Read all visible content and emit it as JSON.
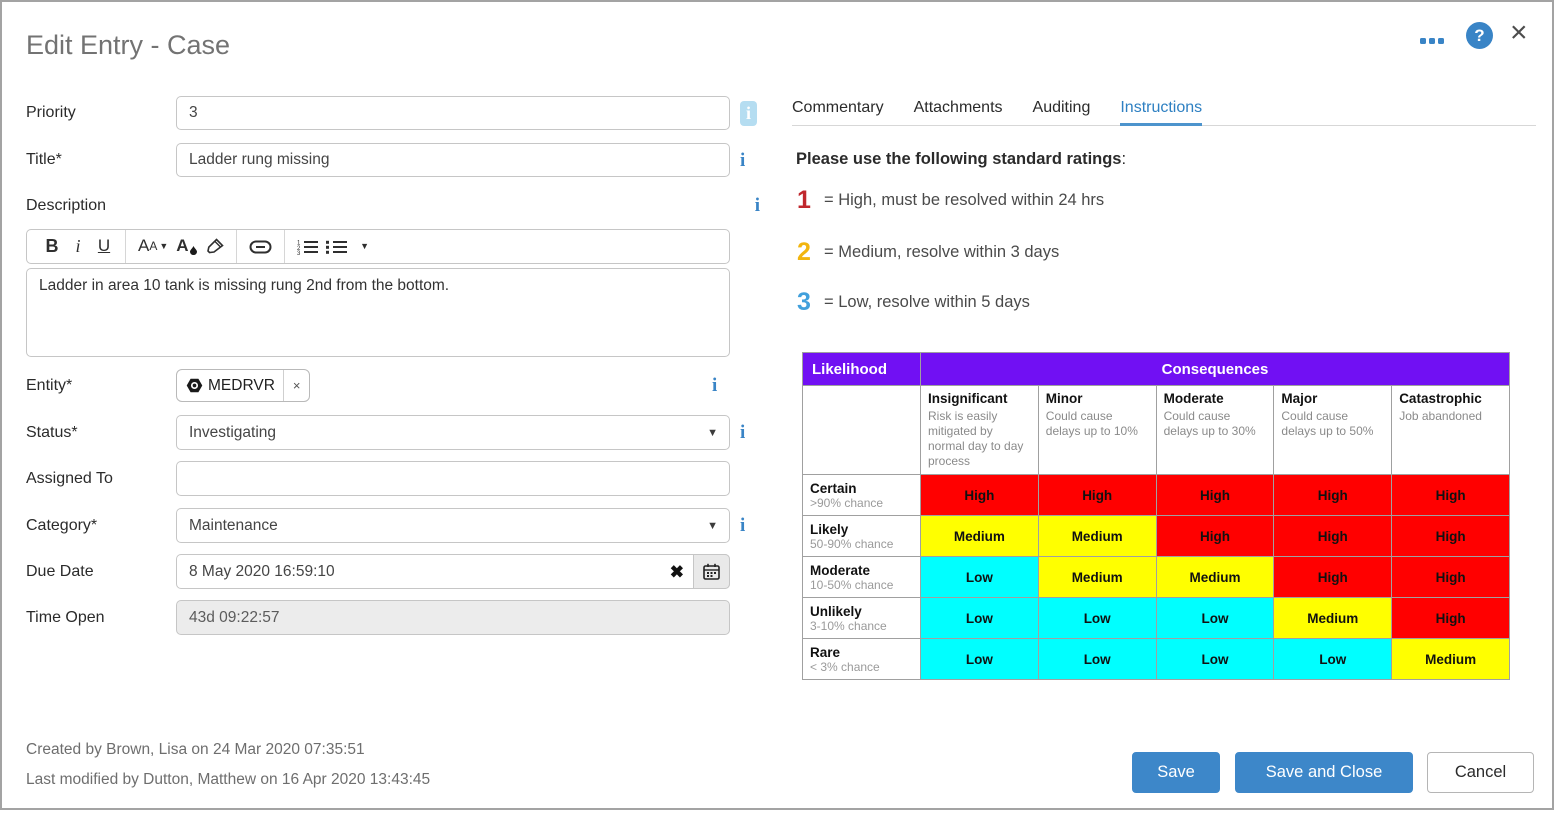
{
  "colors": {
    "accent": "#3984c6",
    "purple": "#7110f3",
    "high": "#ff0000",
    "medium": "#ffff00",
    "low": "#00ffff"
  },
  "dialog": {
    "title": "Edit Entry - Case"
  },
  "form": {
    "priority": {
      "label": "Priority",
      "value": "3"
    },
    "title": {
      "label": "Title*",
      "value": "Ladder rung missing"
    },
    "description": {
      "label": "Description",
      "value": "Ladder in area 10 tank is missing rung 2nd from the bottom."
    },
    "entity": {
      "label": "Entity*",
      "tag": "MEDRVR",
      "remove": "×"
    },
    "status": {
      "label": "Status*",
      "value": "Investigating"
    },
    "assigned_to": {
      "label": "Assigned To",
      "value": ""
    },
    "category": {
      "label": "Category*",
      "value": "Maintenance"
    },
    "due_date": {
      "label": "Due Date",
      "value": "8 May 2020 16:59:10"
    },
    "time_open": {
      "label": "Time Open",
      "value": "43d 09:22:57"
    }
  },
  "footer": {
    "created": "Created by Brown, Lisa on 24 Mar 2020 07:35:51",
    "modified": "Last modified by Dutton, Matthew on 16 Apr 2020 13:43:45"
  },
  "tabs": [
    {
      "label": "Commentary",
      "active": false
    },
    {
      "label": "Attachments",
      "active": false
    },
    {
      "label": "Auditing",
      "active": false
    },
    {
      "label": "Instructions",
      "active": true
    }
  ],
  "instructions": {
    "heading": "Please use the following standard ratings",
    "heading_suffix": ":",
    "ratings": [
      {
        "number": "1",
        "color": "#c0272d",
        "text": "= High, must be resolved within 24 hrs"
      },
      {
        "number": "2",
        "color": "#f2b50f",
        "text": "= Medium, resolve within 3 days"
      },
      {
        "number": "3",
        "color": "#41a0dc",
        "text": "= Low, resolve within 5 days"
      }
    ]
  },
  "matrix": {
    "likelihood_header": "Likelihood",
    "consequences_header": "Consequences",
    "columns": [
      {
        "name": "Insignificant",
        "desc": "Risk is easily mitigated by normal day to day process"
      },
      {
        "name": "Minor",
        "desc": "Could cause delays up to 10%"
      },
      {
        "name": "Moderate",
        "desc": "Could cause delays up to 30%"
      },
      {
        "name": "Major",
        "desc": "Could cause delays up to 50%"
      },
      {
        "name": "Catastrophic",
        "desc": "Job abandoned"
      }
    ],
    "rows": [
      {
        "name": "Certain",
        "chance": ">90% chance",
        "cells": [
          "High",
          "High",
          "High",
          "High",
          "High"
        ]
      },
      {
        "name": "Likely",
        "chance": "50-90% chance",
        "cells": [
          "Medium",
          "Medium",
          "High",
          "High",
          "High"
        ]
      },
      {
        "name": "Moderate",
        "chance": "10-50% chance",
        "cells": [
          "Low",
          "Medium",
          "Medium",
          "High",
          "High"
        ]
      },
      {
        "name": "Unlikely",
        "chance": "3-10% chance",
        "cells": [
          "Low",
          "Low",
          "Low",
          "Medium",
          "High"
        ]
      },
      {
        "name": "Rare",
        "chance": "< 3% chance",
        "cells": [
          "Low",
          "Low",
          "Low",
          "Low",
          "Medium"
        ]
      }
    ],
    "cell_colors": {
      "High": "#ff0000",
      "Medium": "#ffff00",
      "Low": "#00ffff"
    }
  },
  "buttons": {
    "save": "Save",
    "save_and_close": "Save and Close",
    "cancel": "Cancel"
  }
}
